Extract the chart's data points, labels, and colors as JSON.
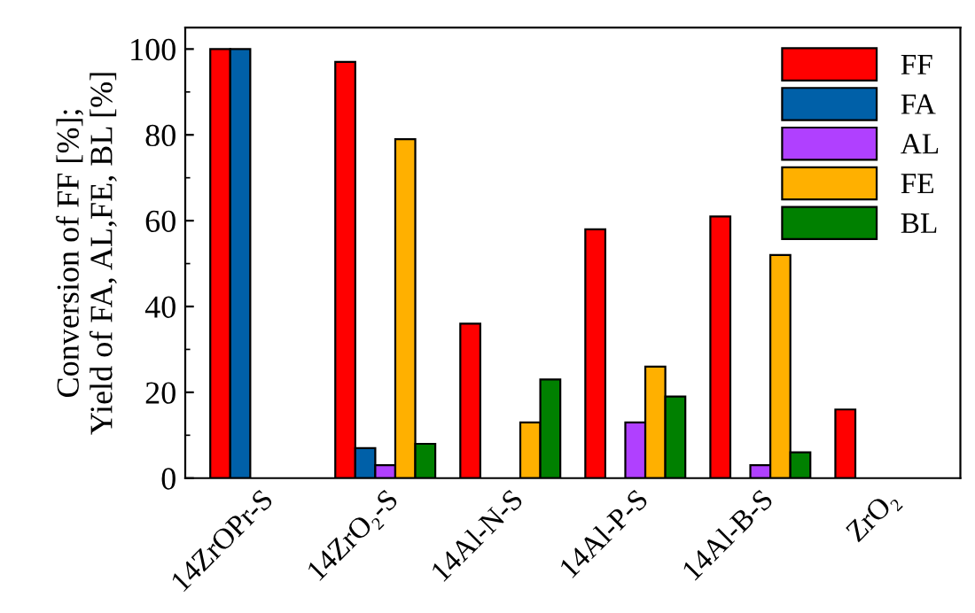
{
  "chart_data": {
    "type": "bar",
    "ylabel": "Conversion of FF [%];\nYield of FA, AL,FE, BL [%]",
    "categories": [
      "14ZrOPr-S",
      "14ZrO₂-S",
      "14Al-N-S",
      "14Al-P-S",
      "14Al-B-S",
      "ZrO₂"
    ],
    "series": [
      {
        "name": "FF",
        "color": "#ff0000",
        "values": [
          100,
          97,
          36,
          58,
          61,
          16
        ]
      },
      {
        "name": "FA",
        "color": "#0060a8",
        "values": [
          100,
          7,
          null,
          null,
          null,
          null
        ]
      },
      {
        "name": "AL",
        "color": "#b040ff",
        "values": [
          null,
          3,
          null,
          13,
          3,
          null
        ]
      },
      {
        "name": "FE",
        "color": "#ffb000",
        "values": [
          null,
          79,
          13,
          26,
          52,
          null
        ]
      },
      {
        "name": "BL",
        "color": "#008000",
        "values": [
          null,
          8,
          23,
          19,
          6,
          null
        ]
      }
    ],
    "ylim": [
      0,
      105
    ],
    "yticks": [
      0,
      20,
      40,
      60,
      80,
      100
    ],
    "legend": "top right",
    "grid": false
  }
}
